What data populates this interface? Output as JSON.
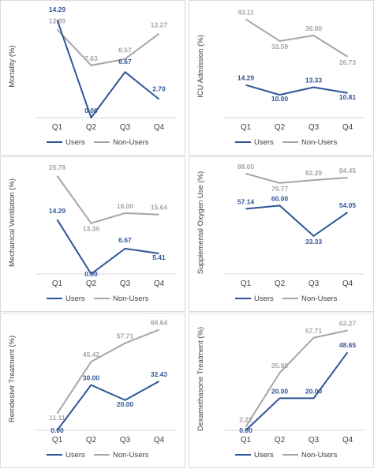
{
  "categories": [
    "Q1",
    "Q2",
    "Q3",
    "Q4"
  ],
  "legend": {
    "users": "Users",
    "non_users": "Non-Users"
  },
  "colors": {
    "users": "#2f5597",
    "non_users": "#a6a6a6",
    "axis": "#d9d9d9",
    "text": "#404040"
  },
  "chart_data": [
    {
      "type": "line",
      "ylabel": "Mortality (%)",
      "categories": [
        "Q1",
        "Q2",
        "Q3",
        "Q4"
      ],
      "ylim": [
        0,
        15
      ],
      "legend_position": "bottom",
      "series": [
        {
          "name": "Users",
          "values": [
            14.29,
            0.0,
            6.67,
            2.7
          ],
          "labels": [
            "14.29",
            "0.00",
            "6.67",
            "2.70"
          ]
        },
        {
          "name": "Non-Users",
          "values": [
            12.89,
            7.63,
            8.57,
            12.27
          ],
          "labels": [
            "12.89",
            "7.63",
            "8.57",
            "12.27"
          ]
        }
      ]
    },
    {
      "type": "line",
      "ylabel": "ICU Admission (%)",
      "categories": [
        "Q1",
        "Q2",
        "Q3",
        "Q4"
      ],
      "ylim": [
        0,
        45
      ],
      "legend_position": "bottom",
      "series": [
        {
          "name": "Users",
          "values": [
            14.29,
            10.0,
            13.33,
            10.81
          ],
          "labels": [
            "14.29",
            "10.00",
            "13.33",
            "10.81"
          ]
        },
        {
          "name": "Non-Users",
          "values": [
            43.11,
            33.59,
            36.0,
            26.73
          ],
          "labels": [
            "43.11",
            "33.59",
            "36.00",
            "26.73"
          ]
        }
      ]
    },
    {
      "type": "line",
      "ylabel": "Mechanical Ventilation (%)",
      "categories": [
        "Q1",
        "Q2",
        "Q3",
        "Q4"
      ],
      "ylim": [
        0,
        27
      ],
      "legend_position": "bottom",
      "series": [
        {
          "name": "Users",
          "values": [
            14.29,
            0.0,
            6.67,
            5.41
          ],
          "labels": [
            "14.29",
            "0.00",
            "6.67",
            "5.41"
          ]
        },
        {
          "name": "Non-Users",
          "values": [
            25.78,
            13.36,
            16.0,
            15.64
          ],
          "labels": [
            "25.78",
            "13.36",
            "16.00",
            "15.64"
          ]
        }
      ]
    },
    {
      "type": "line",
      "ylabel": "Supplemental Oxygen Use (%)",
      "categories": [
        "Q1",
        "Q2",
        "Q3",
        "Q4"
      ],
      "ylim": [
        0,
        90
      ],
      "legend_position": "bottom",
      "series": [
        {
          "name": "Users",
          "values": [
            57.14,
            60.0,
            33.33,
            54.05
          ],
          "labels": [
            "57.14",
            "60.00",
            "33.33",
            "54.05"
          ]
        },
        {
          "name": "Non-Users",
          "values": [
            88.0,
            79.77,
            82.29,
            84.45
          ],
          "labels": [
            "88.00",
            "79.77",
            "82.29",
            "84.45"
          ]
        }
      ]
    },
    {
      "type": "line",
      "ylabel": "Remdesivir Treatment (%)",
      "categories": [
        "Q1",
        "Q2",
        "Q3",
        "Q4"
      ],
      "ylim": [
        0,
        68
      ],
      "legend_position": "bottom",
      "series": [
        {
          "name": "Users",
          "values": [
            0.0,
            30.0,
            20.0,
            32.43
          ],
          "labels": [
            "0.00",
            "30.00",
            "20.00",
            "32.43"
          ]
        },
        {
          "name": "Non-Users",
          "values": [
            11.11,
            45.42,
            57.71,
            66.64
          ],
          "labels": [
            "11.11",
            "45.42",
            "57.71",
            "66.64"
          ]
        }
      ]
    },
    {
      "type": "line",
      "ylabel": "Dexamethasone Treatment (%)",
      "categories": [
        "Q1",
        "Q2",
        "Q3",
        "Q4"
      ],
      "ylim": [
        0,
        64
      ],
      "legend_position": "bottom",
      "series": [
        {
          "name": "Users",
          "values": [
            0.0,
            20.0,
            20.0,
            48.65
          ],
          "labels": [
            "0.00",
            "20.00",
            "20.00",
            "48.65"
          ]
        },
        {
          "name": "Non-Users",
          "values": [
            2.22,
            35.88,
            57.71,
            62.27
          ],
          "labels": [
            "2.22",
            "35.88",
            "57.71",
            "62.27"
          ]
        }
      ]
    }
  ]
}
